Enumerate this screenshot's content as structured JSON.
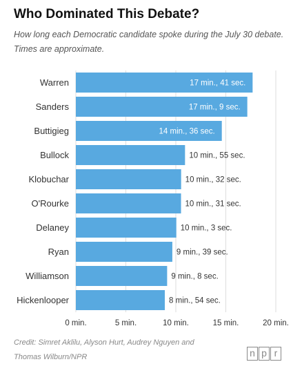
{
  "title": "Who Dominated This Debate?",
  "subtitle": "How long each Democratic candidate spoke during the July 30 debate. Times are approximate.",
  "credit": "Credit: Simret Aklilu, Alyson Hurt, Audrey Nguyen and Thomas Wilburn/NPR",
  "logo": {
    "n": "n",
    "p": "p",
    "r": "r"
  },
  "colors": {
    "bar": "#58a9e0",
    "label_inside": "#ffffff",
    "label_outside": "#333333",
    "grid": "#dddddd"
  },
  "chart_data": {
    "type": "bar",
    "orientation": "horizontal",
    "categories": [
      "Warren",
      "Sanders",
      "Buttigieg",
      "Bullock",
      "Klobuchar",
      "O'Rourke",
      "Delaney",
      "Ryan",
      "Williamson",
      "Hickenlooper"
    ],
    "values": [
      17.68,
      17.15,
      14.6,
      10.92,
      10.53,
      10.52,
      10.05,
      9.65,
      9.13,
      8.9
    ],
    "data_labels": [
      "17 min., 41 sec.",
      "17 min., 9 sec.",
      "14 min., 36 sec.",
      "10 min., 55 sec.",
      "10 min., 32 sec.",
      "10 min., 31 sec.",
      "10 min., 3 sec.",
      "9 min., 39 sec.",
      "9 min., 8 sec.",
      "8 min., 54 sec."
    ],
    "label_inside": [
      true,
      true,
      true,
      false,
      false,
      false,
      false,
      false,
      false,
      false
    ],
    "xlim": [
      0,
      20
    ],
    "xticks": [
      0,
      5,
      10,
      15,
      20
    ],
    "xtick_labels": [
      "0 min.",
      "5 min.",
      "10 min.",
      "15 min.",
      "20 min."
    ],
    "grid": true
  }
}
